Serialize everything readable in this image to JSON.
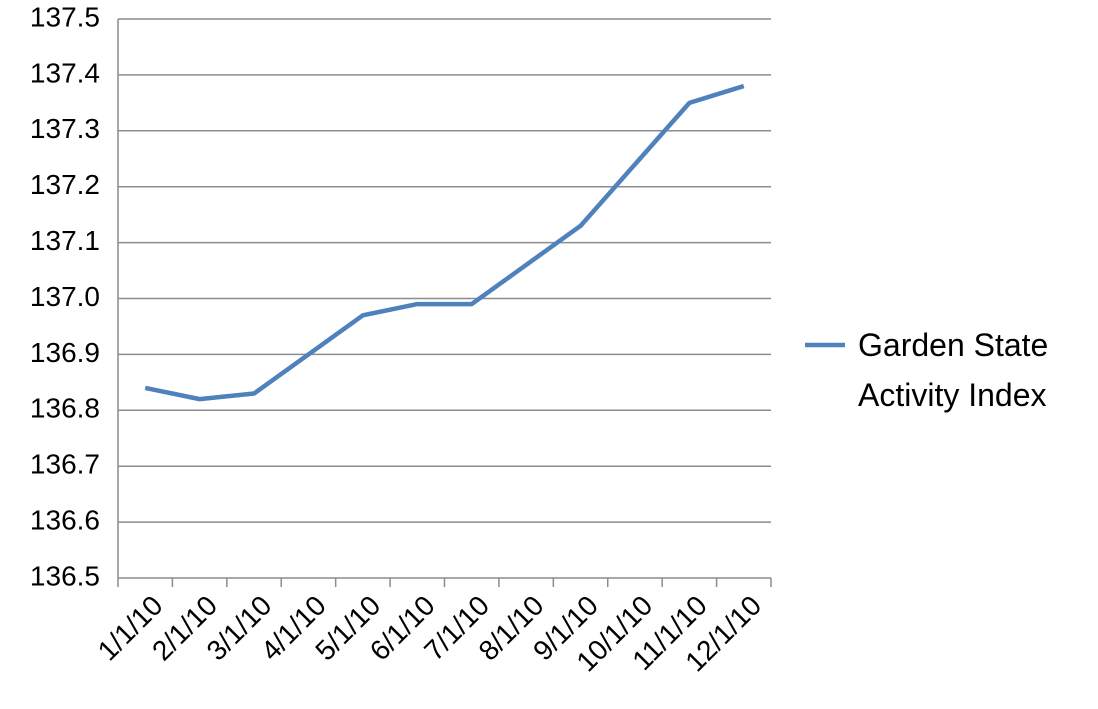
{
  "chart_data": {
    "type": "line",
    "categories": [
      "1/1/10",
      "2/1/10",
      "3/1/10",
      "4/1/10",
      "5/1/10",
      "6/1/10",
      "7/1/10",
      "8/1/10",
      "9/1/10",
      "10/1/10",
      "11/1/10",
      "12/1/10"
    ],
    "series": [
      {
        "name": "Garden State Activity Index",
        "color": "#4f81bd",
        "values": [
          136.84,
          136.82,
          136.83,
          136.9,
          136.97,
          136.99,
          136.99,
          137.06,
          137.13,
          137.24,
          137.35,
          137.38
        ]
      }
    ],
    "ylim": [
      136.5,
      137.5
    ],
    "yticks": [
      136.5,
      136.6,
      136.7,
      136.8,
      136.9,
      {
        "value": 137,
        "label": "137.0"
      },
      137.1,
      137.2,
      137.3,
      137.4,
      137.5
    ],
    "grid": true,
    "legend": "right"
  }
}
